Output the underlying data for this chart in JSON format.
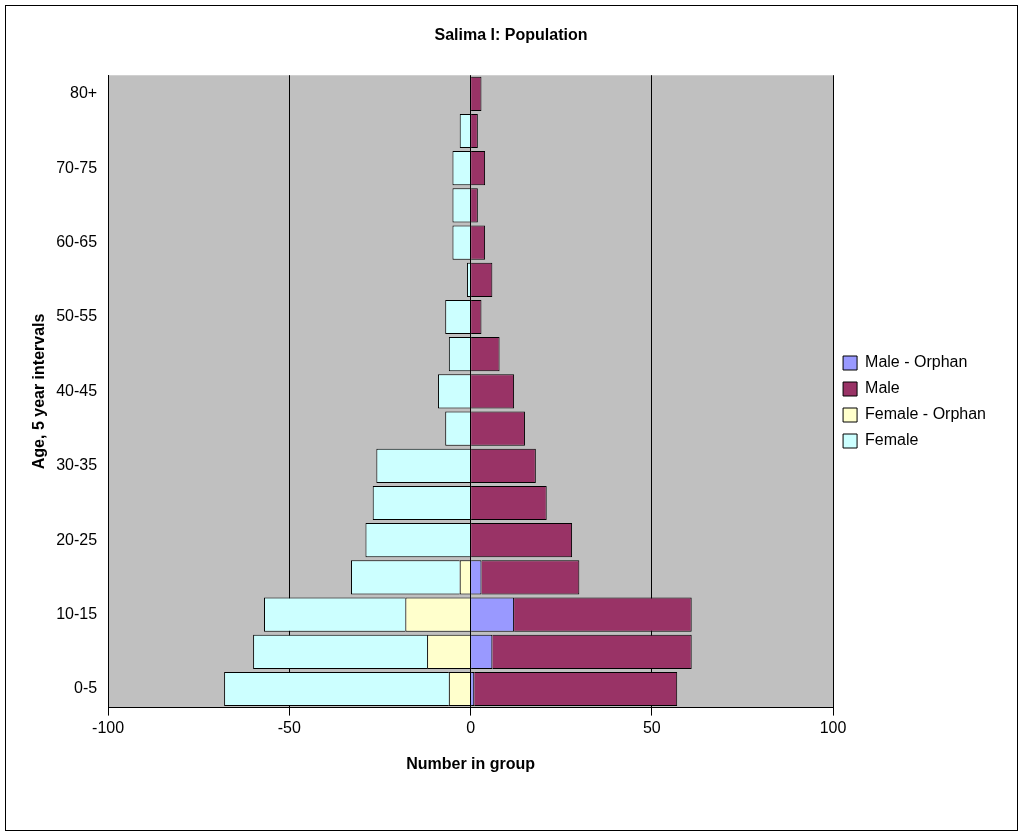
{
  "chart_data": {
    "type": "bar",
    "orientation": "horizontal",
    "stacked": true,
    "title": "Salima I: Population",
    "xlabel": "Number in group",
    "ylabel": "Age, 5 year intervals",
    "categories": [
      "80+",
      null,
      "70-75",
      null,
      "60-65",
      null,
      "50-55",
      null,
      "40-45",
      null,
      "30-35",
      null,
      "20-25",
      null,
      "10-15",
      null,
      "0-5"
    ],
    "series": [
      {
        "name": "Male - Orphan",
        "color": "#9999ff",
        "values": [
          0,
          0,
          0,
          0,
          0,
          0,
          0,
          0,
          0,
          0,
          0,
          0,
          0,
          3,
          12,
          6,
          1
        ]
      },
      {
        "name": "Male",
        "color": "#993366",
        "values": [
          3,
          2,
          4,
          2,
          4,
          6,
          3,
          8,
          12,
          15,
          18,
          21,
          28,
          27,
          49,
          55,
          56
        ]
      },
      {
        "name": "Female - Orphan",
        "color": "#ffffcc",
        "values": [
          0,
          0,
          0,
          0,
          0,
          0,
          0,
          0,
          0,
          0,
          0,
          0,
          0,
          -3,
          -18,
          -12,
          -6
        ]
      },
      {
        "name": "Female",
        "color": "#ccffff",
        "values": [
          0,
          -3,
          -5,
          -5,
          -5,
          -1,
          -7,
          -6,
          -9,
          -7,
          -26,
          -27,
          -29,
          -30,
          -39,
          -48,
          -62
        ]
      }
    ],
    "xlim": [
      -100,
      100
    ],
    "xticks": [
      -100,
      -50,
      0,
      50,
      100
    ],
    "grid": "x",
    "legend": "right"
  }
}
